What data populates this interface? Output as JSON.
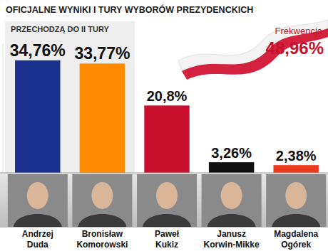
{
  "chart_data": {
    "type": "bar",
    "title": "OFICJALNE WYNIKI I TURY WYBORÓW PREZYDENCKICH",
    "annotations": [
      "PRZECHODZĄ DO II TURY",
      "Frekwencja",
      "48,96%"
    ],
    "categories": [
      "Andrzej Duda",
      "Bronisław Komorowski",
      "Paweł Kukiz",
      "Janusz Korwin-Mikke",
      "Magdalena Ogórek"
    ],
    "values": [
      34.76,
      33.77,
      20.8,
      3.26,
      2.38
    ],
    "value_labels": [
      "34,76%",
      "33,77%",
      "20,8%",
      "3,26%",
      "2,38%"
    ],
    "colors": [
      "#1b2f8c",
      "#ff8a00",
      "#c8102e",
      "#111111",
      "#ec3a1c"
    ],
    "ylim": [
      0,
      40
    ],
    "data_labels": true,
    "tick_labels": false,
    "grid": false
  }
}
